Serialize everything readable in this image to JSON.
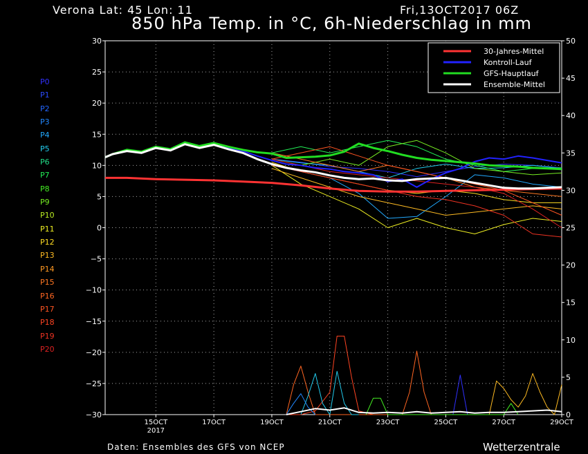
{
  "header": {
    "location": "Verona   Lat: 45 Lon: 11",
    "run": "Fri,13OCT2017 06Z",
    "title": "850 hPa Temp. in °C, 6h-Niederschlag in mm"
  },
  "footer": {
    "source": "Daten: Ensembles des GFS von NCEP",
    "brand": "Wetterzentrale"
  },
  "members": [
    {
      "name": "P0",
      "color": "#3030ff"
    },
    {
      "name": "P1",
      "color": "#2a4cff"
    },
    {
      "name": "P2",
      "color": "#2266ff"
    },
    {
      "name": "P3",
      "color": "#2288ff"
    },
    {
      "name": "P4",
      "color": "#22aaff"
    },
    {
      "name": "P5",
      "color": "#22ccee"
    },
    {
      "name": "P6",
      "color": "#22dd88"
    },
    {
      "name": "P7",
      "color": "#22ee55"
    },
    {
      "name": "P8",
      "color": "#44ee22"
    },
    {
      "name": "P9",
      "color": "#77ee22"
    },
    {
      "name": "P10",
      "color": "#bbee22"
    },
    {
      "name": "P11",
      "color": "#eeee22"
    },
    {
      "name": "P12",
      "color": "#ffdd22"
    },
    {
      "name": "P13",
      "color": "#ffbb22"
    },
    {
      "name": "P14",
      "color": "#ff9922"
    },
    {
      "name": "P15",
      "color": "#ff7722"
    },
    {
      "name": "P16",
      "color": "#ff6622"
    },
    {
      "name": "P17",
      "color": "#ff5522"
    },
    {
      "name": "P18",
      "color": "#ff4422"
    },
    {
      "name": "P19",
      "color": "#ee3322"
    },
    {
      "name": "P20",
      "color": "#dd2222"
    }
  ],
  "chart_data": {
    "type": "line",
    "title": "850 hPa Temp. in °C, 6h-Niederschlag in mm",
    "xlabel": "",
    "ylabel": "",
    "x_ticks": [
      "15OCT\n2017",
      "17OCT",
      "19OCT",
      "21OCT",
      "23OCT",
      "25OCT",
      "27OCT",
      "29OCT"
    ],
    "y_left": {
      "min": -30,
      "max": 30,
      "step": 5,
      "unit": "°C"
    },
    "y_right": {
      "min": 0,
      "max": 50,
      "step": 5,
      "unit": "mm"
    },
    "grid": true,
    "legend_position": "top-right",
    "day_start": 13.25,
    "day_end": 29.0,
    "legend": [
      {
        "name": "30-Jahres-Mittel",
        "color": "#ff3333"
      },
      {
        "name": "Kontroll-Lauf",
        "color": "#2222ff"
      },
      {
        "name": "GFS-Hauptlauf",
        "color": "#22dd22"
      },
      {
        "name": "Ensemble-Mittel",
        "color": "#ffffff"
      }
    ],
    "series": [
      {
        "name": "30-Jahres-Mittel",
        "color": "#ff3333",
        "axis": "left",
        "width": 3,
        "x": [
          13.25,
          14,
          15,
          16,
          17,
          18,
          19,
          20,
          21,
          22,
          23,
          24,
          25,
          26,
          27,
          28,
          29
        ],
        "values": [
          8,
          8,
          7.8,
          7.7,
          7.6,
          7.4,
          7.2,
          6.8,
          6.3,
          5.9,
          5.8,
          5.8,
          5.9,
          6.0,
          6.1,
          6.2,
          6.3
        ]
      },
      {
        "name": "Kontroll-Lauf",
        "color": "#2222ff",
        "axis": "left",
        "width": 2,
        "x": [
          13.25,
          13.5,
          14,
          14.5,
          15,
          15.5,
          16,
          16.5,
          17,
          17.5,
          18,
          18.5,
          19,
          19.5,
          20,
          20.5,
          21,
          21.5,
          22,
          22.5,
          23,
          23.5,
          24,
          24.5,
          25,
          25.5,
          26,
          26.5,
          27,
          27.5,
          28,
          28.5,
          29
        ],
        "values": [
          11.3,
          11.8,
          12.3,
          12.0,
          12.8,
          12.5,
          13.5,
          12.9,
          13.4,
          12.8,
          12.3,
          11.5,
          10.8,
          10.2,
          10.0,
          9.6,
          9.4,
          9.0,
          8.8,
          8.5,
          7.4,
          7.8,
          6.5,
          7.8,
          8.8,
          9.5,
          10.6,
          11.2,
          11.0,
          11.5,
          11.2,
          10.8,
          10.4
        ]
      },
      {
        "name": "GFS-Hauptlauf",
        "color": "#22dd22",
        "axis": "left",
        "width": 3,
        "x": [
          13.25,
          13.5,
          14,
          14.5,
          15,
          15.5,
          16,
          16.5,
          17,
          17.5,
          18,
          18.5,
          19,
          19.5,
          20,
          20.5,
          21,
          21.5,
          22,
          22.5,
          23,
          23.5,
          24,
          24.5,
          25,
          25.5,
          26,
          26.5,
          27,
          27.5,
          28,
          28.5,
          29
        ],
        "values": [
          11.3,
          11.8,
          12.5,
          12.2,
          13.0,
          12.6,
          13.7,
          13.1,
          13.6,
          13.0,
          12.5,
          12.1,
          11.9,
          11.2,
          11.3,
          11.4,
          11.6,
          12.2,
          13.5,
          12.8,
          12.3,
          11.7,
          11.2,
          10.9,
          10.7,
          10.5,
          10.3,
          10.0,
          9.9,
          9.8,
          9.6,
          9.5,
          9.4
        ]
      },
      {
        "name": "Ensemble-Mittel",
        "color": "#ffffff",
        "axis": "left",
        "width": 3,
        "x": [
          13.25,
          13.5,
          14,
          14.5,
          15,
          15.5,
          16,
          16.5,
          17,
          17.5,
          18,
          18.5,
          19,
          19.5,
          20,
          20.5,
          21,
          21.5,
          22,
          22.5,
          23,
          23.5,
          24,
          24.5,
          25,
          25.5,
          26,
          26.5,
          27,
          27.5,
          28,
          28.5,
          29
        ],
        "values": [
          11.3,
          11.8,
          12.3,
          12.0,
          12.8,
          12.4,
          13.4,
          12.8,
          13.3,
          12.6,
          12.0,
          11.0,
          10.2,
          9.6,
          9.2,
          8.9,
          8.4,
          8.0,
          7.8,
          7.9,
          7.6,
          7.5,
          7.8,
          7.9,
          8.0,
          7.6,
          7.2,
          6.8,
          6.4,
          6.3,
          6.3,
          6.4,
          6.5
        ]
      },
      {
        "name": "P0",
        "color": "#3030ff",
        "axis": "left",
        "width": 1,
        "x": [
          19,
          20,
          21,
          22,
          23,
          24,
          25,
          26,
          27,
          28,
          29
        ],
        "values": [
          11.0,
          10.5,
          9.8,
          9.5,
          9.0,
          8.2,
          9.0,
          9.8,
          10.2,
          10.0,
          9.6
        ]
      },
      {
        "name": "P4",
        "color": "#22aaff",
        "axis": "left",
        "width": 1,
        "x": [
          19,
          20,
          21,
          22,
          23,
          24,
          25,
          26,
          27,
          28,
          29
        ],
        "values": [
          10.0,
          9.0,
          8.0,
          5.5,
          1.5,
          1.8,
          5.0,
          8.5,
          8.0,
          7.0,
          6.5
        ]
      },
      {
        "name": "P5",
        "color": "#22ccee",
        "axis": "left",
        "width": 1,
        "x": [
          19,
          20,
          21,
          22,
          23,
          24,
          25,
          26,
          27,
          28,
          29
        ],
        "values": [
          11.0,
          10.4,
          10.0,
          9.0,
          8.0,
          9.5,
          10.2,
          9.5,
          9.6,
          10.0,
          9.5
        ]
      },
      {
        "name": "P7",
        "color": "#22ee55",
        "axis": "left",
        "width": 1,
        "x": [
          19,
          20,
          21,
          22,
          23,
          24,
          25,
          26,
          27,
          28,
          29
        ],
        "values": [
          12.0,
          13.0,
          12.0,
          13.0,
          14.0,
          13.0,
          11.0,
          10.0,
          9.0,
          9.5,
          9.6
        ]
      },
      {
        "name": "P9",
        "color": "#77ee22",
        "axis": "left",
        "width": 1,
        "x": [
          19,
          20,
          21,
          22,
          23,
          24,
          25,
          26,
          27,
          28,
          29
        ],
        "values": [
          11.0,
          10.0,
          11.0,
          10.0,
          13.0,
          14.0,
          12.0,
          9.5,
          9.0,
          8.5,
          8.8
        ]
      },
      {
        "name": "P11",
        "color": "#eeee22",
        "axis": "left",
        "width": 1,
        "x": [
          19,
          20,
          21,
          22,
          23,
          24,
          25,
          26,
          27,
          28,
          29
        ],
        "values": [
          10.0,
          7.0,
          5.0,
          3.0,
          0.0,
          1.5,
          0.0,
          -1.0,
          0.5,
          1.5,
          1.0
        ]
      },
      {
        "name": "P12",
        "color": "#ffdd22",
        "axis": "left",
        "width": 1,
        "x": [
          19,
          20,
          21,
          22,
          23,
          24,
          25,
          26,
          27,
          28,
          29
        ],
        "values": [
          10.5,
          9.0,
          8.0,
          7.0,
          6.0,
          5.5,
          6.0,
          5.5,
          4.5,
          4.0,
          4.0
        ]
      },
      {
        "name": "P13",
        "color": "#ffbb22",
        "axis": "left",
        "width": 1,
        "x": [
          19,
          20,
          21,
          22,
          23,
          24,
          25,
          26,
          27,
          28,
          29
        ],
        "values": [
          9.5,
          8.0,
          6.5,
          5.0,
          4.0,
          3.0,
          2.0,
          2.5,
          3.0,
          3.5,
          3.0
        ]
      },
      {
        "name": "P15",
        "color": "#ff7722",
        "axis": "left",
        "width": 1,
        "x": [
          19,
          20,
          21,
          22,
          23,
          24,
          25,
          26,
          27,
          28,
          29
        ],
        "values": [
          12.0,
          11.0,
          10.0,
          9.0,
          10.0,
          9.0,
          8.0,
          6.5,
          6.0,
          5.5,
          5.0
        ]
      },
      {
        "name": "P17",
        "color": "#ff5522",
        "axis": "left",
        "width": 1,
        "x": [
          19,
          20,
          21,
          22,
          23,
          24,
          25,
          26,
          27,
          28,
          29
        ],
        "values": [
          11.0,
          12.0,
          13.0,
          11.5,
          10.0,
          9.0,
          8.0,
          7.0,
          6.0,
          4.0,
          2.0
        ]
      },
      {
        "name": "P19",
        "color": "#ee3322",
        "axis": "left",
        "width": 1,
        "x": [
          19,
          20,
          21,
          22,
          23,
          24,
          25,
          26,
          27,
          28,
          29
        ],
        "values": [
          10.0,
          9.0,
          8.0,
          7.0,
          6.0,
          5.0,
          4.5,
          3.5,
          2.0,
          -1.0,
          -1.5
        ]
      },
      {
        "name": "P20",
        "color": "#dd2222",
        "axis": "left",
        "width": 1,
        "x": [
          19,
          20,
          21,
          22,
          23,
          24,
          25,
          26,
          27,
          28,
          29
        ],
        "values": [
          11.0,
          10.0,
          9.0,
          8.5,
          8.0,
          7.5,
          7.0,
          6.5,
          5.5,
          3.0,
          0.0
        ]
      },
      {
        "name": "Niederschlag P18",
        "color": "#ff4422",
        "axis": "right",
        "width": 1,
        "x": [
          19.5,
          20,
          20.5,
          21,
          21.25,
          21.5,
          21.75,
          22,
          22.5,
          23,
          23.5,
          24,
          24.5,
          25
        ],
        "values": [
          0,
          0,
          0.5,
          3,
          10.5,
          10.5,
          5,
          0.5,
          0,
          0,
          0,
          0,
          0,
          0
        ]
      },
      {
        "name": "Niederschlag P16",
        "color": "#ff6622",
        "axis": "right",
        "width": 1,
        "x": [
          19.5,
          19.75,
          20,
          20.25,
          20.5,
          21,
          23.5,
          23.75,
          24,
          24.25,
          24.5
        ],
        "values": [
          0,
          4,
          6.5,
          3,
          0,
          0,
          0,
          3,
          8.5,
          3,
          0
        ]
      },
      {
        "name": "Niederschlag P5",
        "color": "#22ccee",
        "axis": "right",
        "width": 1,
        "x": [
          20,
          20.25,
          20.5,
          20.75,
          21,
          21.25,
          21.5,
          21.75,
          22
        ],
        "values": [
          0,
          2.5,
          5.5,
          1.5,
          0,
          5.8,
          1.5,
          0,
          0
        ]
      },
      {
        "name": "Niederschlag P3",
        "color": "#2288ff",
        "axis": "right",
        "width": 1,
        "x": [
          19.5,
          19.75,
          20,
          20.25,
          20.5
        ],
        "values": [
          0,
          1.5,
          2.8,
          1,
          0
        ]
      },
      {
        "name": "Niederschlag P0",
        "color": "#3030ff",
        "axis": "right",
        "width": 1,
        "x": [
          25.25,
          25.5,
          25.75,
          26
        ],
        "values": [
          0,
          5.3,
          0,
          0
        ]
      },
      {
        "name": "Niederschlag P13",
        "color": "#ffbb22",
        "axis": "right",
        "width": 1,
        "x": [
          26.5,
          26.75,
          27,
          27.25,
          27.5,
          27.75,
          28,
          28.25,
          28.5,
          28.75,
          29
        ],
        "values": [
          0,
          4.5,
          3.5,
          2,
          1,
          2.5,
          5.5,
          3,
          1,
          0,
          4
        ]
      },
      {
        "name": "Niederschlag P8",
        "color": "#44ee22",
        "axis": "right",
        "width": 1,
        "x": [
          22.25,
          22.5,
          22.75,
          23,
          27,
          27.25,
          27.5
        ],
        "values": [
          0,
          2.2,
          2.2,
          0,
          0,
          1.5,
          0
        ]
      },
      {
        "name": "Niederschlag Ensemble-Mittel",
        "color": "#ffffff",
        "axis": "right",
        "width": 2,
        "x": [
          19.5,
          20,
          20.5,
          21,
          21.5,
          22,
          22.5,
          23,
          23.5,
          24,
          24.5,
          25,
          25.5,
          26,
          26.5,
          27,
          27.5,
          28,
          28.5,
          29
        ],
        "values": [
          0,
          0.4,
          0.8,
          0.6,
          0.9,
          0.3,
          0.2,
          0.3,
          0.2,
          0.4,
          0.2,
          0.3,
          0.4,
          0.2,
          0.3,
          0.3,
          0.4,
          0.5,
          0.6,
          0.4
        ]
      }
    ]
  }
}
